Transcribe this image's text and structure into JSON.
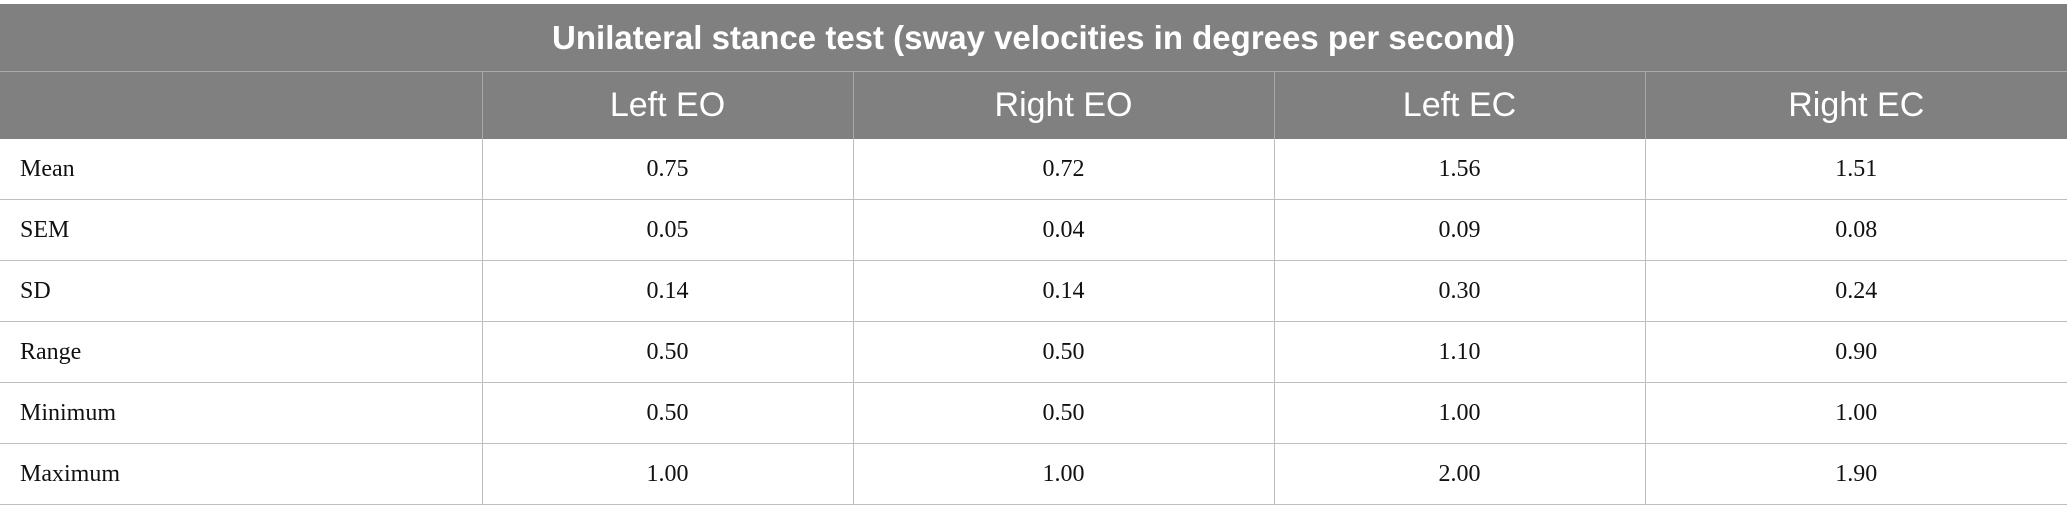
{
  "table": {
    "title": "Unilateral stance test (sway velocities in degrees per second)",
    "columns": [
      "",
      "Left EO",
      "Right EO",
      "Left EC",
      "Right EC"
    ],
    "rows": [
      {
        "label": "Mean",
        "values": [
          "0.75",
          "0.72",
          "1.56",
          "1.51"
        ]
      },
      {
        "label": "SEM",
        "values": [
          "0.05",
          "0.04",
          "0.09",
          "0.08"
        ]
      },
      {
        "label": "SD",
        "values": [
          "0.14",
          "0.14",
          "0.30",
          "0.24"
        ]
      },
      {
        "label": "Range",
        "values": [
          "0.50",
          "0.50",
          "1.10",
          "0.90"
        ]
      },
      {
        "label": "Minimum",
        "values": [
          "0.50",
          "0.50",
          "1.00",
          "1.00"
        ]
      },
      {
        "label": "Maximum",
        "values": [
          "1.00",
          "1.00",
          "2.00",
          "1.90"
        ]
      }
    ]
  },
  "colors": {
    "header_background": "#808080",
    "header_text": "#ffffff",
    "grid_line": "#bdbdbd"
  }
}
